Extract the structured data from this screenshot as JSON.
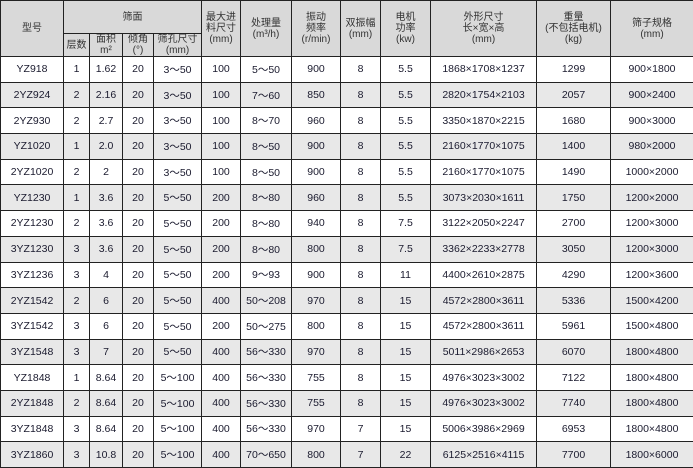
{
  "header": {
    "model": "型号",
    "screen_surface": "筛面",
    "layers": "层数",
    "area": [
      "面积",
      "m²"
    ],
    "angle": [
      "倾角",
      "(°)"
    ],
    "aperture": [
      "筛孔尺寸",
      "(mm)"
    ],
    "max_feed": [
      "最大进",
      "料尺寸",
      "(mm)"
    ],
    "capacity": [
      "处理量",
      "(m³/h)"
    ],
    "frequency": [
      "振动",
      "频率",
      "(r/min)"
    ],
    "amplitude": [
      "双振幅",
      "(mm)"
    ],
    "motor_power": [
      "电机",
      "功率",
      "(kw)"
    ],
    "dimensions": [
      "外形尺寸",
      "长×宽×高",
      "(mm)"
    ],
    "weight": [
      "重量",
      "(不包括电机)",
      "(kg)"
    ],
    "screen_spec": [
      "筛子规格",
      "(mm)"
    ]
  },
  "rows": [
    [
      "YZ918",
      "1",
      "1.62",
      "20",
      "3～50",
      "100",
      "5～50",
      "900",
      "8",
      "5.5",
      "1868×1708×1237",
      "1299",
      "900×1800"
    ],
    [
      "2YZ924",
      "2",
      "2.16",
      "20",
      "3～50",
      "100",
      "7～60",
      "850",
      "8",
      "5.5",
      "2820×1754×2103",
      "2057",
      "900×2400"
    ],
    [
      "2YZ930",
      "2",
      "2.7",
      "20",
      "3～50",
      "100",
      "8～70",
      "960",
      "8",
      "5.5",
      "3350×1870×2215",
      "1680",
      "900×3000"
    ],
    [
      "YZ1020",
      "1",
      "2.0",
      "20",
      "3～50",
      "100",
      "8～50",
      "900",
      "8",
      "5.5",
      "2160×1770×1075",
      "1400",
      "980×2000"
    ],
    [
      "2YZ1020",
      "2",
      "2",
      "20",
      "3～50",
      "100",
      "8～50",
      "900",
      "8",
      "5.5",
      "2160×1770×1075",
      "1490",
      "1000×2000"
    ],
    [
      "YZ1230",
      "1",
      "3.6",
      "20",
      "5～50",
      "200",
      "8～80",
      "960",
      "8",
      "5.5",
      "3073×2030×1611",
      "1750",
      "1200×2000"
    ],
    [
      "2YZ1230",
      "2",
      "3.6",
      "20",
      "5～50",
      "200",
      "8～80",
      "940",
      "8",
      "7.5",
      "3122×2050×2247",
      "2700",
      "1200×3000"
    ],
    [
      "3YZ1230",
      "3",
      "3.6",
      "20",
      "5～50",
      "200",
      "8～80",
      "800",
      "8",
      "7.5",
      "3362×2233×2778",
      "3050",
      "1200×3000"
    ],
    [
      "3YZ1236",
      "3",
      "4",
      "20",
      "5～50",
      "200",
      "9～93",
      "900",
      "8",
      "11",
      "4400×2610×2875",
      "4290",
      "1200×3600"
    ],
    [
      "2YZ1542",
      "2",
      "6",
      "20",
      "5～50",
      "400",
      "50～208",
      "970",
      "8",
      "15",
      "4572×2800×3611",
      "5336",
      "1500×4200"
    ],
    [
      "3YZ1542",
      "3",
      "6",
      "20",
      "5～50",
      "200",
      "50～275",
      "800",
      "8",
      "15",
      "4572×2800×3611",
      "5961",
      "1500×4800"
    ],
    [
      "3YZ1548",
      "3",
      "7",
      "20",
      "5～50",
      "400",
      "56～330",
      "970",
      "8",
      "15",
      "5011×2986×2653",
      "6070",
      "1800×4800"
    ],
    [
      "YZ1848",
      "1",
      "8.64",
      "20",
      "5～100",
      "400",
      "56～330",
      "755",
      "8",
      "15",
      "4976×3023×3002",
      "7122",
      "1800×4800"
    ],
    [
      "2YZ1848",
      "2",
      "8.64",
      "20",
      "5～100",
      "400",
      "56～330",
      "755",
      "8",
      "15",
      "4976×3023×3002",
      "7740",
      "1800×4800"
    ],
    [
      "3YZ1848",
      "3",
      "8.64",
      "20",
      "5～100",
      "400",
      "56～330",
      "970",
      "7",
      "15",
      "5006×3986×2969",
      "6953",
      "1800×4800"
    ],
    [
      "3YZ1860",
      "3",
      "10.8",
      "20",
      "5～100",
      "400",
      "70～650",
      "800",
      "7",
      "22",
      "6125×2516×4115",
      "7700",
      "1800×6000"
    ]
  ]
}
